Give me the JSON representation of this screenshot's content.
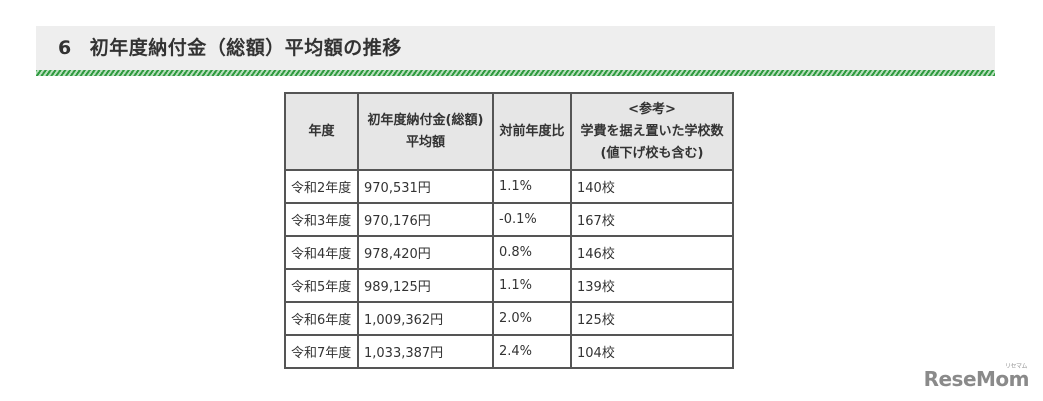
{
  "section": {
    "number": "6",
    "title": "初年度納付金（総額）平均額の推移"
  },
  "table": {
    "headers": [
      [
        "年度"
      ],
      [
        "初年度納付金(総額)",
        "平均額"
      ],
      [
        "対前年度比"
      ],
      [
        "<参考>",
        "学費を据え置いた学校数",
        "(値下げ校も含む)"
      ]
    ],
    "rows": [
      {
        "year": "令和2年度",
        "amount": "970,531円",
        "ratio": "1.1%",
        "schools": "140校"
      },
      {
        "year": "令和3年度",
        "amount": "970,176円",
        "ratio": "-0.1%",
        "schools": "167校"
      },
      {
        "year": "令和4年度",
        "amount": "978,420円",
        "ratio": "0.8%",
        "schools": "146校"
      },
      {
        "year": "令和5年度",
        "amount": "989,125円",
        "ratio": "1.1%",
        "schools": "139校"
      },
      {
        "year": "令和6年度",
        "amount": "1,009,362円",
        "ratio": "2.0%",
        "schools": "125校"
      },
      {
        "year": "令和7年度",
        "amount": "1,033,387円",
        "ratio": "2.4%",
        "schools": "104校"
      }
    ]
  },
  "watermark": {
    "text": "ReseMom",
    "small": "リセマム"
  },
  "colors": {
    "header_bg": "#eeeeee",
    "stripe": "#2e9a3e",
    "table_header_bg": "#e6e6e6",
    "border": "#555555"
  }
}
